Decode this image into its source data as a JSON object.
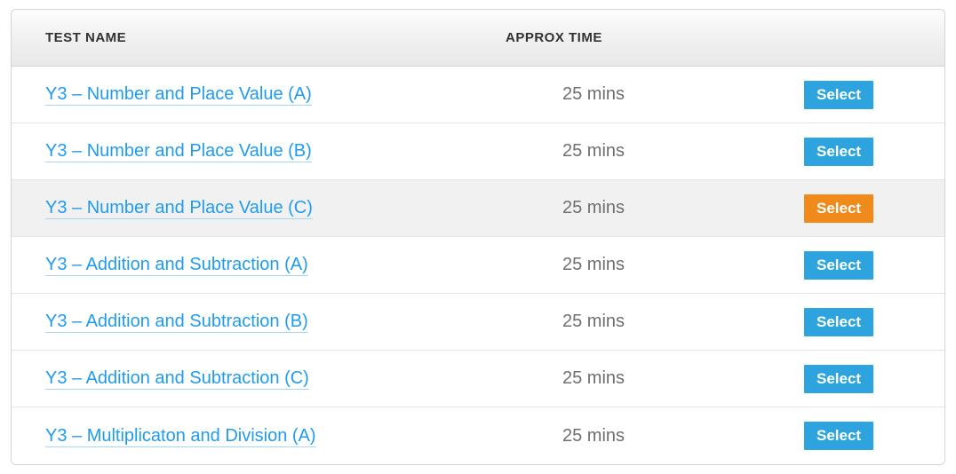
{
  "table": {
    "headers": {
      "name": "TEST NAME",
      "time": "APPROX TIME"
    },
    "button_label": "Select",
    "colors": {
      "link": "#1f9bf0",
      "link_underline": "#a3d6f7",
      "button_default": "#2da4df",
      "button_active": "#f08a1b",
      "row_highlight": "#f1f1f1",
      "text_time": "#6f6f6f",
      "header_text": "#323232",
      "border": "#d4d4d4"
    },
    "rows": [
      {
        "name": "Y3 – Number and Place Value (A)",
        "time": "25 mins",
        "highlighted": false,
        "selected": false
      },
      {
        "name": "Y3 – Number and Place Value (B)",
        "time": "25 mins",
        "highlighted": false,
        "selected": false
      },
      {
        "name": "Y3 – Number and Place Value (C)",
        "time": "25 mins",
        "highlighted": true,
        "selected": true
      },
      {
        "name": "Y3 – Addition and Subtraction (A)",
        "time": "25 mins",
        "highlighted": false,
        "selected": false
      },
      {
        "name": "Y3 – Addition and Subtraction (B)",
        "time": "25 mins",
        "highlighted": false,
        "selected": false
      },
      {
        "name": "Y3 – Addition and Subtraction (C)",
        "time": "25 mins",
        "highlighted": false,
        "selected": false
      },
      {
        "name": "Y3 – Multiplicaton and Division (A)",
        "time": "25 mins",
        "highlighted": false,
        "selected": false
      }
    ]
  }
}
